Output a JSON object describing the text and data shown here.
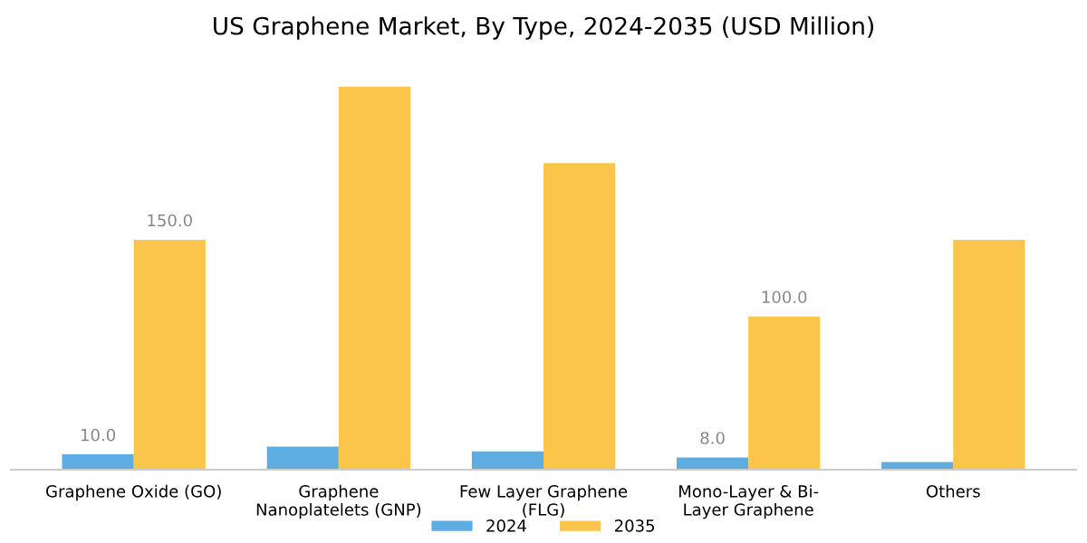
{
  "chart_data": {
    "type": "bar",
    "title": "US Graphene Market, By Type, 2024-2035 (USD Million)",
    "categories": [
      "Graphene Oxide (GO)",
      "Graphene\nNanoplatelets (GNP)",
      "Few Layer Graphene\n(FLG)",
      "Mono-Layer & Bi-\nLayer Graphene",
      "Others"
    ],
    "series": [
      {
        "name": "2024",
        "color": "#5dade2",
        "values": [
          10,
          15,
          12,
          8,
          5
        ],
        "value_labels": [
          "10.0",
          null,
          null,
          "8.0",
          null
        ]
      },
      {
        "name": "2035",
        "color": "#fbc54c",
        "values": [
          150,
          250,
          200,
          100,
          150
        ],
        "value_labels": [
          "150.0",
          null,
          null,
          "100.0",
          null
        ]
      }
    ],
    "legend": "bottom",
    "grid": false
  }
}
